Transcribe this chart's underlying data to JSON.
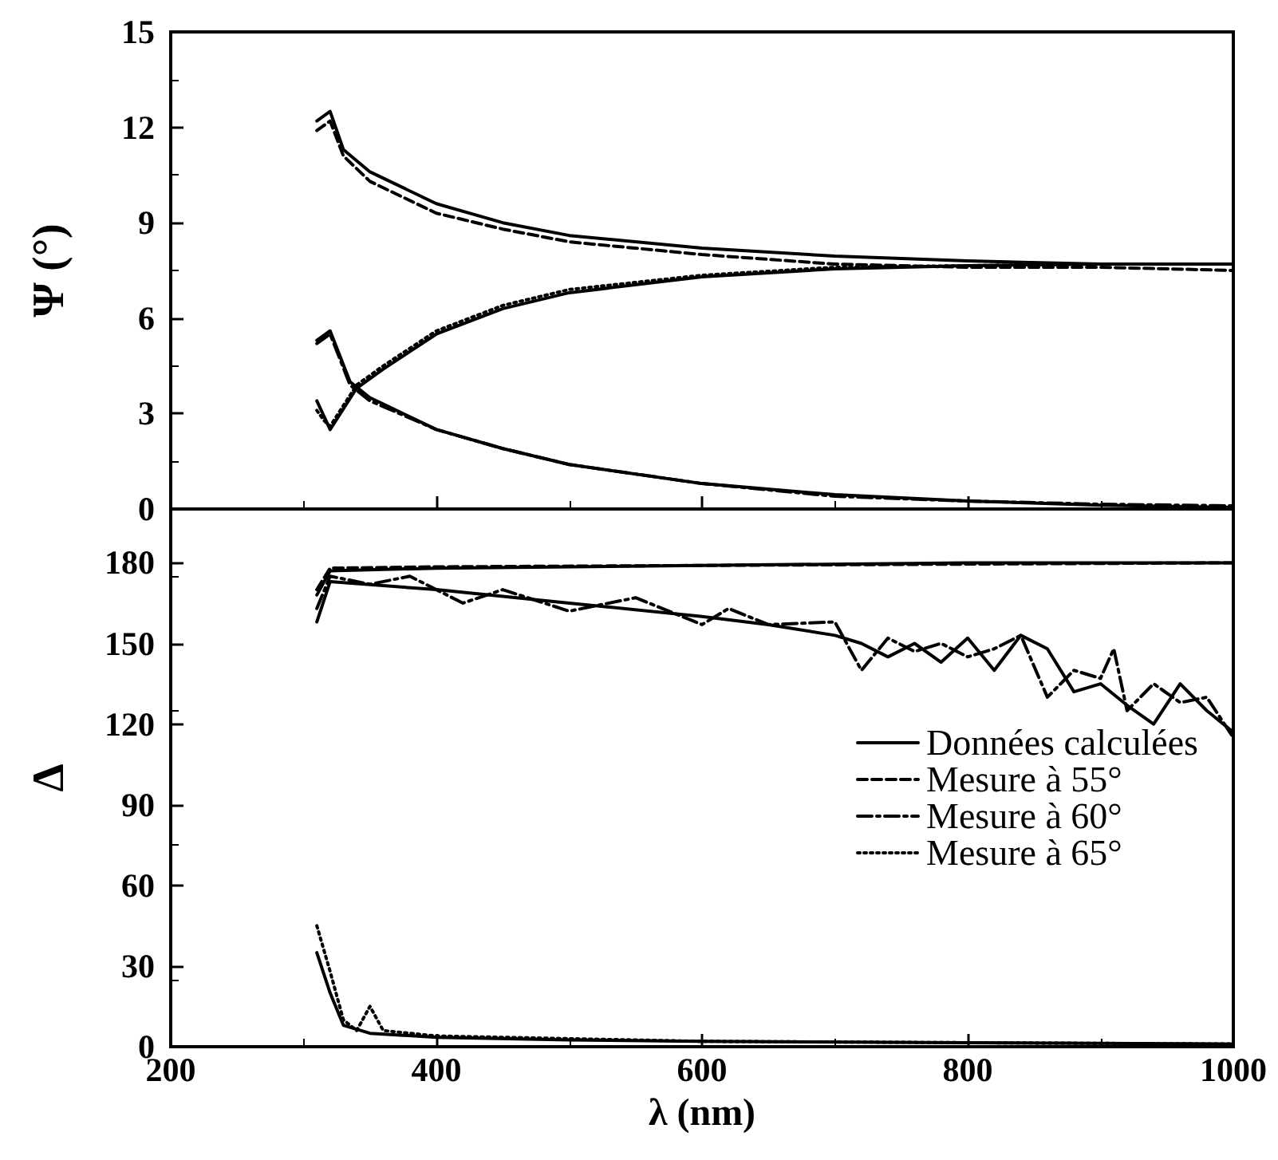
{
  "chart_data": [
    {
      "type": "line",
      "ylabel": "Ψ (°)",
      "xlim": [
        200,
        1000
      ],
      "xticks": [
        200,
        400,
        600,
        800,
        1000
      ],
      "ylim": [
        0,
        15
      ],
      "yticks": [
        0,
        3,
        6,
        9,
        12,
        15
      ],
      "tick_labels": "y",
      "legend": false,
      "grid": false,
      "marker": "none",
      "series": [
        {
          "color": "#000000",
          "line_style": "solid",
          "x": [
            310,
            320,
            330,
            350,
            400,
            450,
            500,
            600,
            700,
            800,
            900,
            1000
          ],
          "values": [
            12.2,
            12.5,
            11.3,
            10.6,
            9.6,
            9.0,
            8.6,
            8.2,
            7.95,
            7.8,
            7.7,
            7.7
          ]
        },
        {
          "color": "#000000",
          "line_style": "dashed",
          "x": [
            310,
            320,
            330,
            350,
            400,
            450,
            500,
            600,
            700,
            800,
            900,
            1000
          ],
          "values": [
            11.9,
            12.2,
            11.1,
            10.3,
            9.3,
            8.8,
            8.4,
            8.0,
            7.7,
            7.6,
            7.6,
            7.5
          ]
        },
        {
          "color": "#000000",
          "line_style": "solid",
          "x": [
            310,
            320,
            340,
            360,
            400,
            450,
            500,
            600,
            700,
            800,
            900,
            1000
          ],
          "values": [
            3.4,
            2.5,
            3.8,
            4.4,
            5.5,
            6.3,
            6.8,
            7.3,
            7.55,
            7.65,
            7.7,
            7.7
          ]
        },
        {
          "color": "#000000",
          "line_style": "dotted",
          "x": [
            310,
            315,
            320,
            340,
            360,
            400,
            450,
            500,
            600,
            700,
            800,
            900,
            1000
          ],
          "values": [
            3.1,
            2.8,
            2.6,
            3.9,
            4.5,
            5.6,
            6.4,
            6.9,
            7.35,
            7.6,
            7.65,
            7.7,
            7.7
          ]
        },
        {
          "color": "#000000",
          "line_style": "solid",
          "x": [
            310,
            320,
            335,
            350,
            400,
            450,
            500,
            600,
            700,
            800,
            900,
            1000
          ],
          "values": [
            5.3,
            5.6,
            4.0,
            3.5,
            2.5,
            1.9,
            1.4,
            0.8,
            0.45,
            0.25,
            0.12,
            0.05
          ]
        },
        {
          "color": "#000000",
          "line_style": "dashdot",
          "x": [
            310,
            320,
            335,
            350,
            400,
            450,
            500,
            600,
            700,
            800,
            900,
            1000
          ],
          "values": [
            5.2,
            5.5,
            3.9,
            3.4,
            2.5,
            1.9,
            1.4,
            0.8,
            0.4,
            0.25,
            0.15,
            0.1
          ]
        }
      ]
    },
    {
      "type": "line",
      "xlabel": "λ (nm)",
      "ylabel": "Δ",
      "xlim": [
        200,
        1000
      ],
      "xticks": [
        200,
        400,
        600,
        800,
        1000
      ],
      "ylim": [
        0,
        200
      ],
      "yticks": [
        0,
        30,
        60,
        90,
        120,
        150,
        180
      ],
      "legend": "right",
      "grid": false,
      "marker": "none",
      "series": [
        {
          "name": "Données calculées",
          "color": "#000000",
          "line_style": "solid",
          "x": [
            310,
            320,
            400,
            600,
            800,
            1000
          ],
          "values": [
            168,
            177,
            178,
            179,
            180,
            180
          ]
        },
        {
          "name": "Mesure à 55°",
          "color": "#000000",
          "line_style": "dashed",
          "x": [
            310,
            320,
            400,
            600,
            800,
            1000
          ],
          "values": [
            170,
            178,
            178.5,
            179,
            179.5,
            180
          ]
        },
        {
          "color": "#000000",
          "line_style": "solid",
          "x": [
            310,
            320,
            400,
            500,
            600,
            650,
            700,
            720,
            740,
            760,
            780,
            800,
            820,
            840,
            860,
            880,
            900,
            920,
            940,
            960,
            980,
            1000
          ],
          "values": [
            158,
            173,
            170,
            165,
            160,
            157,
            153,
            150,
            145,
            150,
            143,
            152,
            140,
            153,
            148,
            132,
            135,
            127,
            120,
            135,
            125,
            117
          ]
        },
        {
          "name": "Mesure à 60°",
          "color": "#000000",
          "line_style": "dashdot",
          "x": [
            310,
            320,
            350,
            380,
            420,
            450,
            500,
            550,
            600,
            620,
            650,
            700,
            720,
            740,
            760,
            780,
            800,
            820,
            840,
            860,
            880,
            900,
            910,
            920,
            940,
            960,
            980,
            1000
          ],
          "values": [
            163,
            175,
            172,
            175,
            165,
            170,
            162,
            167,
            157,
            163,
            157,
            158,
            140,
            152,
            147,
            150,
            145,
            148,
            153,
            130,
            140,
            137,
            148,
            125,
            135,
            128,
            130,
            115
          ]
        },
        {
          "color": "#000000",
          "line_style": "solid",
          "x": [
            310,
            320,
            330,
            350,
            400,
            500,
            600,
            800,
            1000
          ],
          "values": [
            35,
            20,
            8,
            5,
            3.5,
            2.5,
            2,
            1.5,
            1
          ]
        },
        {
          "name": "Mesure à 65°",
          "color": "#000000",
          "line_style": "dotted",
          "x": [
            310,
            320,
            330,
            340,
            350,
            360,
            400,
            500,
            600,
            800,
            1000
          ],
          "values": [
            45,
            28,
            10,
            6,
            15,
            6,
            4,
            3,
            2,
            1.5,
            1
          ]
        }
      ]
    }
  ]
}
